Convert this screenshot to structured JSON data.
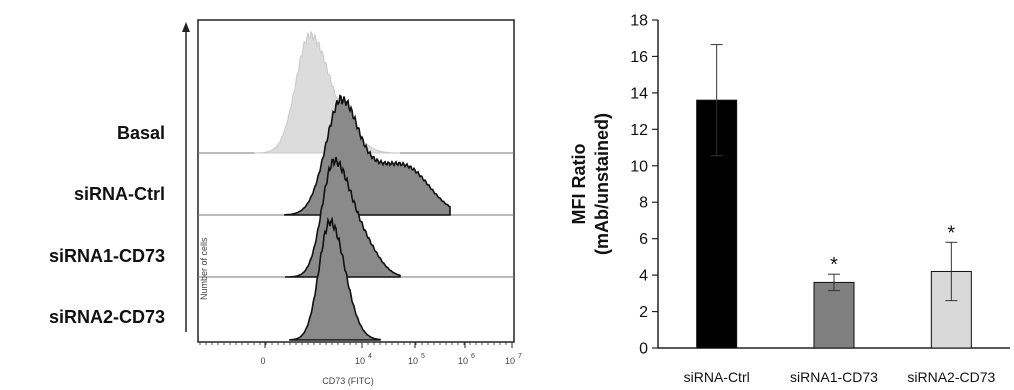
{
  "chart_data": [
    {
      "type": "histogram-overlay",
      "row_labels": [
        "Basal",
        "siRNA-Ctrl",
        "siRNA1-CD73",
        "siRNA2-CD73"
      ],
      "xlabel": "CD73 (FITC)",
      "ylabel": "Number of cells",
      "x_tick_labels": [
        "0",
        "10",
        "10",
        "10",
        "10"
      ],
      "x_tick_exponents": [
        "",
        "4",
        "5",
        "6",
        "7"
      ],
      "scale": "log",
      "colors": [
        "#dcdcdc",
        "#8a8a8a",
        "#8a8a8a",
        "#8a8a8a"
      ]
    },
    {
      "type": "bar",
      "categories": [
        "siRNA-Ctrl",
        "siRNA1-CD73",
        "siRNA2-CD73"
      ],
      "values": [
        13.6,
        3.6,
        4.2
      ],
      "errors": [
        3.05,
        0.45,
        1.6
      ],
      "significance": [
        "",
        "*",
        "*"
      ],
      "colors": [
        "#000000",
        "#808080",
        "#d9d9d9"
      ],
      "ylabel_line1": "MFI Ratio",
      "ylabel_line2": "(mAb/unstained)",
      "ylim": [
        0,
        18
      ],
      "yticks": [
        "0",
        "2",
        "4",
        "6",
        "8",
        "10",
        "12",
        "14",
        "16",
        "18"
      ]
    }
  ]
}
